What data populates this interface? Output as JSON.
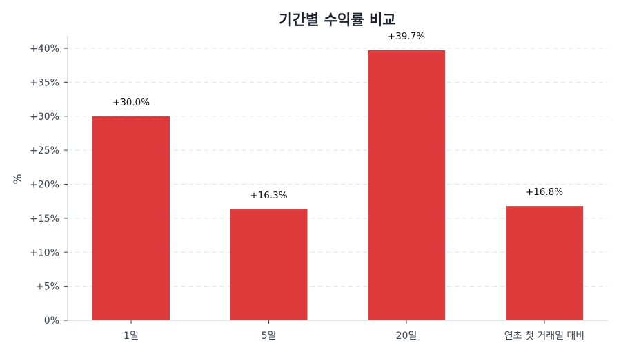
{
  "chart_data": {
    "type": "bar",
    "title": "기간별 수익률 비교",
    "xlabel": "",
    "ylabel": "%",
    "categories": [
      "1일",
      "5일",
      "20일",
      "연초 첫 거래일 대비"
    ],
    "values": [
      30.0,
      16.3,
      39.7,
      16.8
    ],
    "value_labels": [
      "+30.0%",
      "+16.3%",
      "+39.7%",
      "+16.8%"
    ],
    "ylim": [
      0,
      41.8
    ],
    "yticks": [
      0,
      5,
      10,
      15,
      20,
      25,
      30,
      35,
      40
    ],
    "ytick_labels": [
      "0%",
      "+5%",
      "+10%",
      "+15%",
      "+20%",
      "+25%",
      "+30%",
      "+35%",
      "+40%"
    ],
    "grid": {
      "y": true,
      "x": false,
      "style": "dashed"
    },
    "legend": null,
    "colors": {
      "bar": "#e03b3c",
      "grid": "#e2e6ec",
      "axis": "#cdd3dc",
      "title": "#1a202c",
      "text": "#3b4252"
    }
  }
}
